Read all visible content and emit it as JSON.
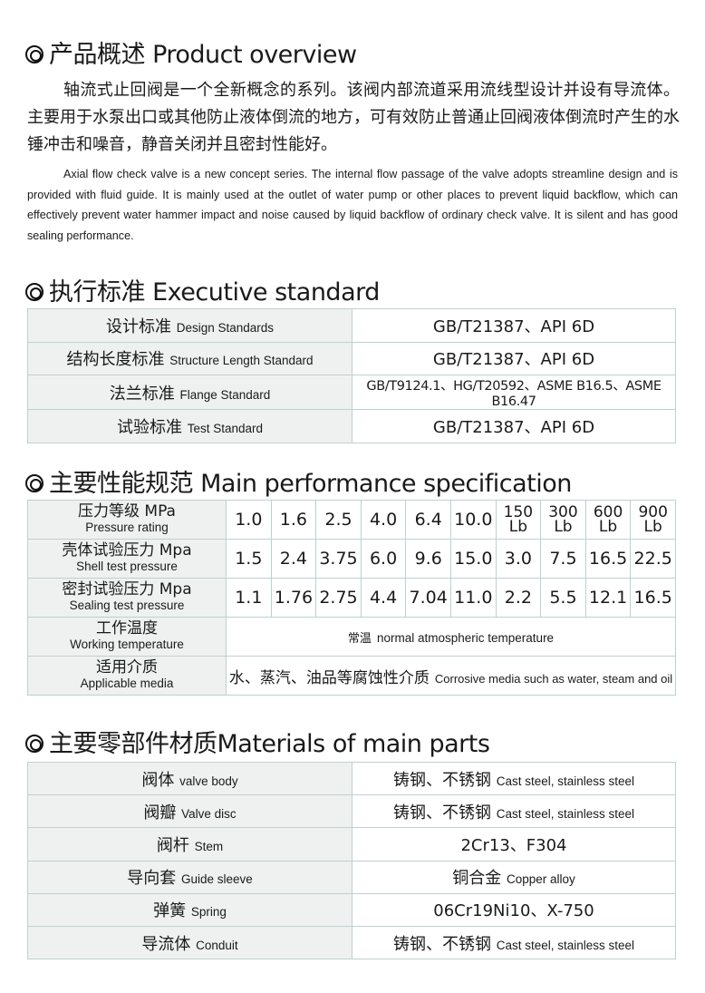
{
  "overview": {
    "heading": "产品概述 Product overview",
    "cn": "轴流式止回阀是一个全新概念的系列。该阀内部流道采用流线型设计并设有导流体。主要用于水泵出口或其他防止液体倒流的地方，可有效防止普通止回阀液体倒流时产生的水锤冲击和噪音，静音关闭并且密封性能好。",
    "en": "Axial flow check valve is a new concept series. The internal flow passage of the valve adopts streamline design and is provided with fluid guide. It is mainly used at the outlet of water pump or other places to prevent liquid backflow, which can effectively prevent water hammer impact and noise caused by liquid backflow of ordinary check valve. It is silent and has good sealing performance."
  },
  "standard": {
    "heading": "执行标准 Executive standard",
    "rows": [
      {
        "cn": "设计标准",
        "en": "Design Standards",
        "value": "GB/T21387、API 6D"
      },
      {
        "cn": "结构长度标准",
        "en": "Structure Length Standard",
        "value": "GB/T21387、API 6D"
      },
      {
        "cn": "法兰标准",
        "en": "Flange Standard",
        "value": "GB/T9124.1、HG/T20592、ASME B16.5、ASME B16.47"
      },
      {
        "cn": "试验标准",
        "en": "Test Standard",
        "value": "GB/T21387、API 6D"
      }
    ]
  },
  "performance": {
    "heading": "主要性能规范 Main performance specification",
    "rows": [
      {
        "cn": "压力等级 MPa",
        "en": "Pressure rating",
        "values": [
          "1.0",
          "1.6",
          "2.5",
          "4.0",
          "6.4",
          "10.0"
        ],
        "lb": [
          [
            "150",
            "Lb"
          ],
          [
            "300",
            "Lb"
          ],
          [
            "600",
            "Lb"
          ],
          [
            "900",
            "Lb"
          ]
        ]
      },
      {
        "cn": "壳体试验压力 Mpa",
        "en": "Shell test pressure",
        "values": [
          "1.5",
          "2.4",
          "3.75",
          "6.0",
          "9.6",
          "15.0",
          "3.0",
          "7.5",
          "16.5",
          "22.5"
        ]
      },
      {
        "cn": "密封试验压力 Mpa",
        "en": "Sealing test pressure",
        "values": [
          "1.1",
          "1.76",
          "2.75",
          "4.4",
          "7.04",
          "11.0",
          "2.2",
          "5.5",
          "12.1",
          "16.5"
        ]
      }
    ],
    "temp": {
      "cn": "工作温度",
      "en": "Working temperature",
      "value_cn": "常温",
      "value_en": "normal atmospheric temperature"
    },
    "media": {
      "cn": "适用介质",
      "en": "Applicable media",
      "value_cn": "水、蒸汽、油品等腐蚀性介质",
      "value_en": "Corrosive media such as water, steam and oil"
    }
  },
  "materials": {
    "heading": "主要零部件材质Materials of main parts",
    "rows": [
      {
        "cn": "阀体",
        "en": "valve body",
        "value_cn": "铸钢、不锈钢",
        "value_en": "Cast steel, stainless steel"
      },
      {
        "cn": "阀瓣",
        "en": "Valve disc",
        "value_cn": "铸钢、不锈钢",
        "value_en": "Cast steel, stainless steel"
      },
      {
        "cn": "阀杆",
        "en": "Stem",
        "value_cn": "2Cr13、F304",
        "value_en": ""
      },
      {
        "cn": "导向套",
        "en": "Guide sleeve",
        "value_cn": "铜合金",
        "value_en": "Copper alloy"
      },
      {
        "cn": "弹簧",
        "en": "Spring",
        "value_cn": "06Cr19Ni10、X-750",
        "value_en": ""
      },
      {
        "cn": "导流体",
        "en": "Conduit",
        "value_cn": "铸钢、不锈钢",
        "value_en": "Cast steel, stainless steel"
      }
    ]
  }
}
